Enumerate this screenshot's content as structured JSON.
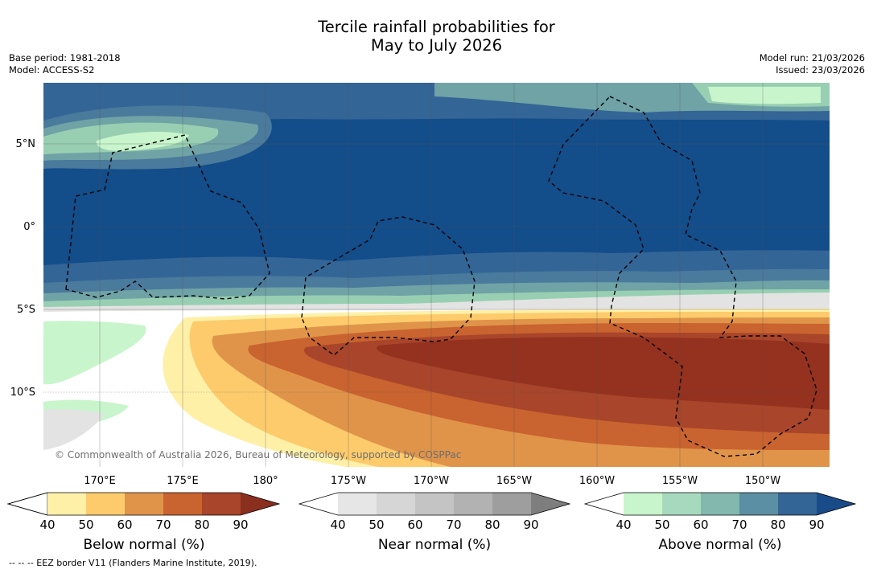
{
  "title": {
    "line1": "Tercile rainfall probabilities for",
    "line2": "May to July 2026"
  },
  "meta_left": {
    "base_period": "Base period: 1981-2018",
    "model": "Model: ACCESS-S2"
  },
  "meta_right": {
    "model_run": "Model run: 21/03/2026",
    "issued": "Issued: 23/03/2026"
  },
  "map": {
    "lat_labels": [
      "5°N",
      "0°",
      "5°S",
      "10°S"
    ],
    "lon_labels": [
      "170°E",
      "175°E",
      "180°",
      "175°W",
      "170°W",
      "165°W",
      "160°W",
      "155°W",
      "150°W"
    ],
    "copyright": "© Commonwealth of Australia 2026, Bureau of Meteorology, supported by COSPPac"
  },
  "colorbars": [
    {
      "title": "Below normal (%)",
      "ticks": [
        "40",
        "50",
        "60",
        "70",
        "80",
        "90"
      ],
      "colors": [
        "#fff0a8",
        "#fdcb6b",
        "#e0944a",
        "#c9632f",
        "#a8452a",
        "#8a2e1e"
      ],
      "low_color": "#ffffff"
    },
    {
      "title": "Near normal (%)",
      "ticks": [
        "40",
        "50",
        "60",
        "70",
        "80",
        "90"
      ],
      "colors": [
        "#e6e6e6",
        "#d6d6d6",
        "#c4c4c4",
        "#b2b2b2",
        "#9e9e9e",
        "#7e7e7e"
      ],
      "low_color": "#ffffff"
    },
    {
      "title": "Above normal (%)",
      "ticks": [
        "40",
        "50",
        "60",
        "70",
        "80",
        "90"
      ],
      "colors": [
        "#c8f5cc",
        "#a6d9bd",
        "#82b8ad",
        "#5b8fa3",
        "#336596",
        "#184b88"
      ],
      "low_color": "#ffffff"
    }
  ],
  "footer": "--  --  -- EEZ border V11 (Flanders Marine Institute, 2019).",
  "palette": {
    "above_90": "#134d8a",
    "above_80": "#336596",
    "above_70": "#4a7a9c",
    "above_60": "#6fa3a6",
    "above_50": "#98cfb2",
    "above_40": "#c8f5cc",
    "near_40": "#e3e3e3",
    "below_40": "#fff0a8",
    "below_50": "#fdcb6b",
    "below_60": "#e0944a",
    "below_70": "#c9632f",
    "below_80": "#a8452a",
    "below_90": "#94311f"
  }
}
